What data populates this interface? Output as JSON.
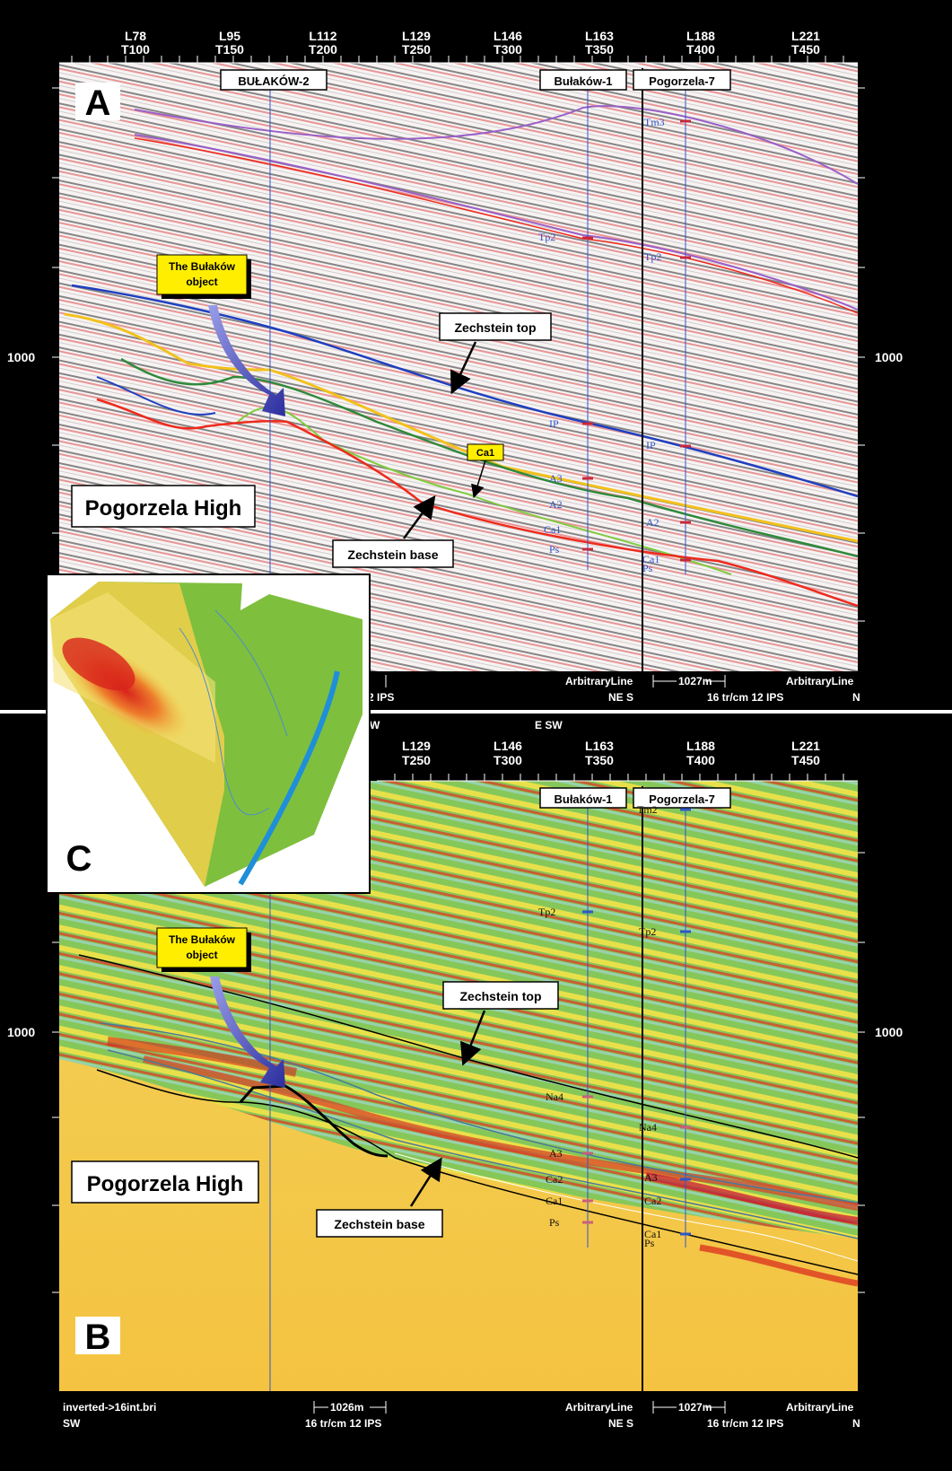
{
  "panel_a": {
    "letter": "A",
    "traces": [
      {
        "line": "L78",
        "trace": "T100"
      },
      {
        "line": "L95",
        "trace": "T150"
      },
      {
        "line": "L112",
        "trace": "T200"
      },
      {
        "line": "L129",
        "trace": "T250"
      },
      {
        "line": "L146",
        "trace": "T300"
      },
      {
        "line": "L163",
        "trace": "T350"
      },
      {
        "line": "L188",
        "trace": "T400"
      },
      {
        "line": "L221",
        "trace": "T450"
      }
    ],
    "wells": [
      "BUŁAKÓW-2",
      "Bułaków-1",
      "Pogorzela-7"
    ],
    "depth_label": "1000",
    "object_label": [
      "The Bułaków",
      "object"
    ],
    "zechstein_top": "Zechstein top",
    "zechstein_base": "Zechstein base",
    "ca1_tag": "Ca1",
    "high_label": "Pogorzela High",
    "well1_markers": [
      "Tp2",
      "IP",
      "A3",
      "A2",
      "Ca1",
      "Ps"
    ],
    "well2_markers": [
      "Tm3",
      "Tp2",
      "IP",
      "A2",
      "Ca1",
      "Ps"
    ],
    "footer": {
      "arb1": "ArbitraryLine",
      "dist": "1027m",
      "arb2": "ArbitraryLine",
      "ips_left": "2  IPS",
      "dir": "NE S",
      "scale": "16  tr/cm  12  IPS",
      "n": "N"
    }
  },
  "panel_b": {
    "letter": "B",
    "header_left": "W",
    "header_mid": "E SW",
    "traces": [
      {
        "line": "L129",
        "trace": "T250"
      },
      {
        "line": "L146",
        "trace": "T300"
      },
      {
        "line": "L163",
        "trace": "T350"
      },
      {
        "line": "L188",
        "trace": "T400"
      },
      {
        "line": "L221",
        "trace": "T450"
      }
    ],
    "wells": [
      "Bułaków-1",
      "Pogorzela-7"
    ],
    "depth_label": "1000",
    "object_label": [
      "The Bułaków",
      "object"
    ],
    "zechstein_top": "Zechstein top",
    "zechstein_base": "Zechstein base",
    "high_label": "Pogorzela High",
    "well1_markers": [
      "Tp2",
      "Na4",
      "A3",
      "Ca2",
      "Ca1",
      "Ps"
    ],
    "well2_markers": [
      "Tm2",
      "Tp2",
      "Na4",
      "A3",
      "Ca2",
      "Ca1",
      "Ps"
    ],
    "footer": {
      "file": "inverted->16int.bri",
      "sw": "SW",
      "dist1": "1026m",
      "scale1": "16  tr/cm  12  IPS",
      "arb1": "ArbitraryLine",
      "dir": "NE S",
      "dist2": "1027m",
      "arb2": "ArbitraryLine",
      "scale2": "16  tr/cm  12  IPS",
      "n": "N"
    }
  },
  "panel_c": {
    "letter": "C"
  },
  "colors": {
    "zechstein_top_a": "#1f3fbf",
    "zechstein_base_a": "#ee2a1c",
    "horizon_yellow": "#f2c11c",
    "horizon_green": "#2f8a3a",
    "horizon_lightgreen": "#7fcc3e",
    "horizon_purple": "#9a5fc8",
    "well_line": "#2f56c8",
    "label_yellow": "#ffee00"
  }
}
